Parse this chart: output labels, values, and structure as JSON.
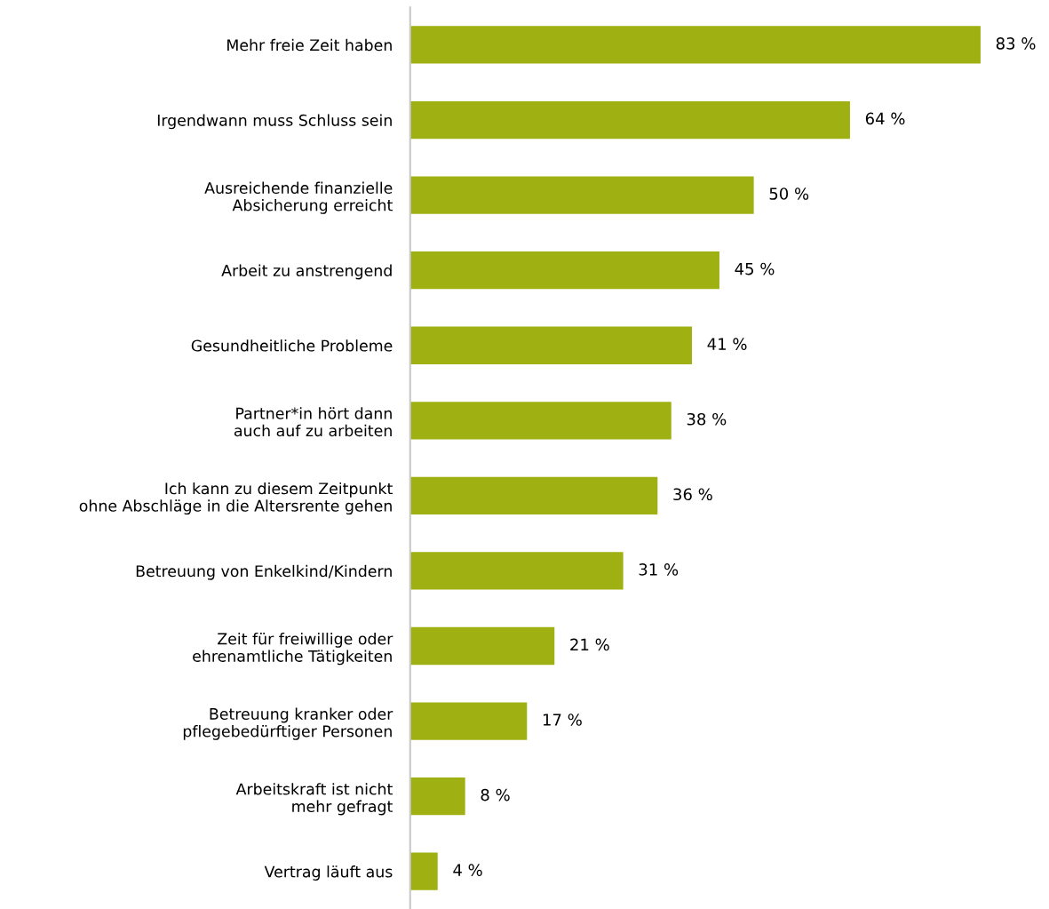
{
  "chart_data": {
    "type": "bar",
    "orientation": "horizontal",
    "categories": [
      "Mehr freie Zeit haben",
      "Irgendwann muss Schluss sein",
      "Ausreichende finanzielle\nAbsicherung erreicht",
      "Arbeit zu anstrengend",
      "Gesundheitliche Probleme",
      "Partner*in hört dann\nauch auf zu arbeiten",
      "Ich kann zu diesem Zeitpunkt\nohne Abschläge in die Altersrente gehen",
      "Betreuung von Enkelkind/Kindern",
      "Zeit für freiwillige oder\nehrenamtliche Tätigkeiten",
      "Betreuung kranker oder\npflegebedürftiger Personen",
      "Arbeitskraft ist nicht\nmehr gefragt",
      "Vertrag läuft aus"
    ],
    "values": [
      83,
      64,
      50,
      45,
      41,
      38,
      36,
      31,
      21,
      17,
      8,
      4
    ],
    "value_labels": [
      "83 %",
      "64 %",
      "50 %",
      "45 %",
      "41 %",
      "38 %",
      "36 %",
      "31 %",
      "21 %",
      "17 %",
      "8 %",
      "4 %"
    ],
    "color": "#9fb012",
    "tick_labels": "y",
    "grid": false,
    "legend": false
  }
}
